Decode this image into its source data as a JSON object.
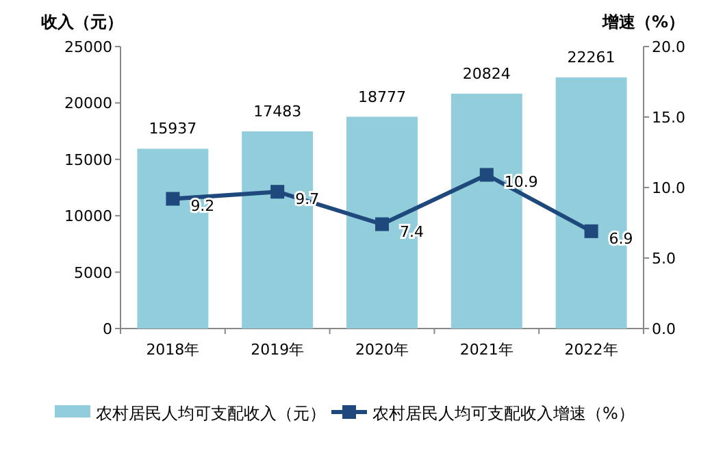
{
  "chart_data": {
    "type": "bar",
    "ylabel": "收入（元）",
    "y2label": "增速（%）",
    "categories": [
      "2018年",
      "2019年",
      "2020年",
      "2021年",
      "2022年"
    ],
    "series": [
      {
        "name": "农村居民人均可支配收入（元）",
        "color": "#92cddc",
        "values": [
          15937,
          17483,
          18777,
          20824,
          22261
        ]
      },
      {
        "name": "农村居民人均可支配收入增速（%）",
        "type": "line",
        "axis": "y2",
        "color": "#1f497d",
        "marker": "square",
        "values": [
          9.2,
          9.7,
          7.4,
          10.9,
          6.9
        ]
      }
    ],
    "ylim": [
      0,
      25000
    ],
    "yticks": [
      0,
      5000,
      10000,
      15000,
      20000,
      25000
    ],
    "y2lim": [
      0,
      20
    ],
    "y2ticks": [
      {
        "value": 0,
        "label": "0.0"
      },
      {
        "value": 5,
        "label": "5.0"
      },
      {
        "value": 10,
        "label": "10.0"
      },
      {
        "value": 15,
        "label": "15.0"
      },
      {
        "value": 20,
        "label": "20.0"
      }
    ],
    "data_labels": true,
    "grid": false,
    "legend": "bottom"
  }
}
